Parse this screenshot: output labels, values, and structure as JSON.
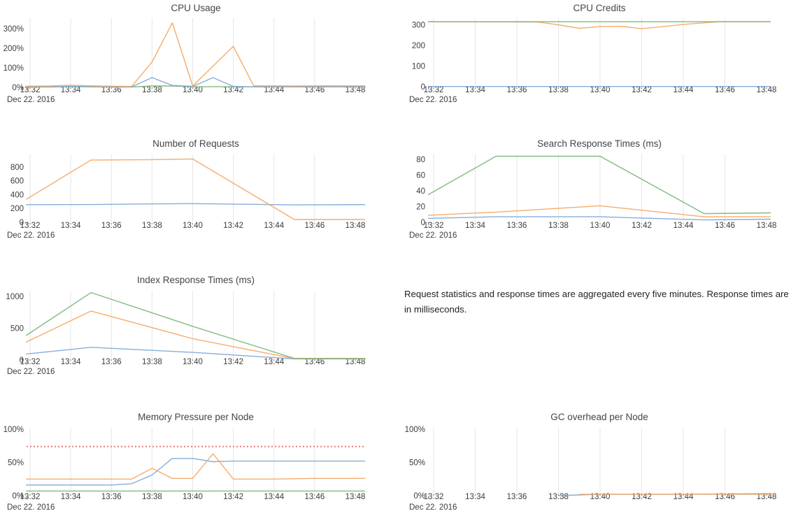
{
  "colors": {
    "blue": "#7ba7d7",
    "orange": "#f6a55e",
    "green": "#76b576",
    "red": "#eb7878",
    "grid": "#e6e6e6",
    "title_text": "#42454a",
    "tick_text": "#3c3c3c",
    "background": "#ffffff"
  },
  "x_axis": {
    "tick_labels": [
      "13:32",
      "13:34",
      "13:36",
      "13:38",
      "13:40",
      "13:42",
      "13:44",
      "13:46",
      "13:48"
    ],
    "date_label": "Dec 22. 2016",
    "x_range": [
      "13:32",
      "13:48"
    ]
  },
  "annotation": {
    "text": "Request statistics and response times are aggregated every five minutes. Response times are in milliseconds."
  },
  "chart_data": [
    {
      "id": "cpu-usage",
      "type": "line",
      "title": "CPU Usage",
      "ylabel": "",
      "ylim": [
        0,
        340
      ],
      "grid": "vertical",
      "legend": "none",
      "y_ticks": [
        {
          "value": 0,
          "label": "0%"
        },
        {
          "value": 100,
          "label": "100%"
        },
        {
          "value": 200,
          "label": "200%"
        },
        {
          "value": 300,
          "label": "300%"
        }
      ],
      "series": [
        {
          "name": "series-green",
          "color": "green",
          "points": [
            [
              31.8,
              2
            ],
            [
              33,
              2
            ],
            [
              34,
              4
            ],
            [
              35,
              3
            ],
            [
              36,
              2
            ],
            [
              37,
              2
            ],
            [
              38,
              7
            ],
            [
              39,
              7
            ],
            [
              40,
              3
            ],
            [
              41,
              4
            ],
            [
              42,
              3
            ],
            [
              43,
              3
            ],
            [
              44,
              4
            ],
            [
              45,
              3
            ],
            [
              46,
              3
            ],
            [
              47,
              4
            ],
            [
              48.49,
              4
            ]
          ]
        },
        {
          "name": "series-blue",
          "color": "blue",
          "points": [
            [
              31.8,
              3
            ],
            [
              33,
              3
            ],
            [
              34,
              5
            ],
            [
              35,
              4
            ],
            [
              36,
              3
            ],
            [
              37,
              3
            ],
            [
              38,
              50
            ],
            [
              39,
              10
            ],
            [
              40,
              5
            ],
            [
              41,
              50
            ],
            [
              42,
              5
            ],
            [
              43,
              3
            ],
            [
              44,
              3
            ],
            [
              45,
              3
            ],
            [
              46,
              3
            ],
            [
              47,
              3
            ],
            [
              48.49,
              3
            ]
          ]
        },
        {
          "name": "series-orange",
          "color": "orange",
          "points": [
            [
              31.8,
              6
            ],
            [
              33,
              7
            ],
            [
              34,
              11
            ],
            [
              35,
              8
            ],
            [
              36,
              6
            ],
            [
              37,
              5
            ],
            [
              38,
              130
            ],
            [
              39,
              330
            ],
            [
              40,
              7
            ],
            [
              42,
              210
            ],
            [
              43,
              8
            ],
            [
              44,
              8
            ],
            [
              45,
              7
            ],
            [
              46,
              8
            ],
            [
              47,
              8
            ],
            [
              48.49,
              8
            ]
          ]
        }
      ]
    },
    {
      "id": "cpu-credits",
      "type": "line",
      "title": "CPU Credits",
      "ylabel": "",
      "ylim": [
        0,
        330
      ],
      "grid": "vertical",
      "legend": "none",
      "y_ticks": [
        {
          "value": 0,
          "label": "0"
        },
        {
          "value": 100,
          "label": "100"
        },
        {
          "value": 200,
          "label": "200"
        },
        {
          "value": 300,
          "label": "300"
        }
      ],
      "series": [
        {
          "name": "series-blue",
          "color": "blue",
          "points": [
            [
              31.73,
              1
            ],
            [
              48.2,
              1
            ]
          ]
        },
        {
          "name": "series-orange",
          "color": "orange",
          "points": [
            [
              31.73,
              315
            ],
            [
              37,
              314
            ],
            [
              38,
              300
            ],
            [
              39,
              283
            ],
            [
              40,
              292
            ],
            [
              41,
              293
            ],
            [
              42,
              281
            ],
            [
              43,
              291
            ],
            [
              44,
              302
            ],
            [
              45.7,
              315
            ],
            [
              48.2,
              315
            ]
          ]
        },
        {
          "name": "series-green",
          "color": "green",
          "points": [
            [
              31.73,
              315
            ],
            [
              48.2,
              315
            ]
          ]
        }
      ]
    },
    {
      "id": "number-of-requests",
      "type": "line",
      "title": "Number of Requests",
      "ylabel": "",
      "ylim": [
        0,
        940
      ],
      "grid": "vertical",
      "legend": "none",
      "y_ticks": [
        {
          "value": 0,
          "label": "0"
        },
        {
          "value": 200,
          "label": "200"
        },
        {
          "value": 400,
          "label": "400"
        },
        {
          "value": 600,
          "label": "600"
        },
        {
          "value": 800,
          "label": "800"
        }
      ],
      "series": [
        {
          "name": "series-blue",
          "color": "blue",
          "points": [
            [
              31.8,
              255
            ],
            [
              35,
              257
            ],
            [
              38,
              266
            ],
            [
              40,
              270
            ],
            [
              43,
              260
            ],
            [
              45,
              252
            ],
            [
              48.49,
              256
            ]
          ]
        },
        {
          "name": "series-orange",
          "color": "orange",
          "points": [
            [
              31.8,
              330
            ],
            [
              35,
              900
            ],
            [
              38,
              905
            ],
            [
              40,
              915
            ],
            [
              45,
              40
            ],
            [
              48.49,
              40
            ]
          ]
        }
      ]
    },
    {
      "id": "search-response-times",
      "type": "line",
      "title": "Search Response Times (ms)",
      "ylabel": "",
      "ylim": [
        0,
        89
      ],
      "grid": "vertical",
      "legend": "none",
      "y_ticks": [
        {
          "value": 0,
          "label": "0"
        },
        {
          "value": 20,
          "label": "20"
        },
        {
          "value": 40,
          "label": "40"
        },
        {
          "value": 60,
          "label": "60"
        },
        {
          "value": 80,
          "label": "80"
        }
      ],
      "series": [
        {
          "name": "series-blue",
          "color": "blue",
          "points": [
            [
              31.73,
              5
            ],
            [
              35,
              7
            ],
            [
              40,
              7
            ],
            [
              45,
              3
            ],
            [
              48.2,
              4
            ]
          ]
        },
        {
          "name": "series-orange",
          "color": "orange",
          "points": [
            [
              31.73,
              9
            ],
            [
              35,
              13
            ],
            [
              40,
              21
            ],
            [
              45,
              7
            ],
            [
              48.2,
              7
            ]
          ]
        },
        {
          "name": "series-green",
          "color": "green",
          "points": [
            [
              31.73,
              35
            ],
            [
              35,
              84
            ],
            [
              40,
              84
            ],
            [
              45,
              11
            ],
            [
              48.2,
              12
            ]
          ]
        }
      ]
    },
    {
      "id": "index-response-times",
      "type": "line",
      "title": "Index Response Times (ms)",
      "ylabel": "",
      "ylim": [
        0,
        1100
      ],
      "grid": "vertical",
      "legend": "none",
      "y_ticks": [
        {
          "value": 0,
          "label": "0"
        },
        {
          "value": 500,
          "label": "500"
        },
        {
          "value": 1000,
          "label": "1000"
        }
      ],
      "series": [
        {
          "name": "series-blue",
          "color": "blue",
          "points": [
            [
              31.8,
              95
            ],
            [
              35,
              200
            ],
            [
              40,
              120
            ],
            [
              45,
              18
            ],
            [
              48.49,
              18
            ]
          ]
        },
        {
          "name": "series-orange",
          "color": "orange",
          "points": [
            [
              31.8,
              280
            ],
            [
              35,
              770
            ],
            [
              40,
              335
            ],
            [
              45,
              22
            ],
            [
              48.49,
              22
            ]
          ]
        },
        {
          "name": "series-green",
          "color": "green",
          "points": [
            [
              31.8,
              385
            ],
            [
              35,
              1060
            ],
            [
              40,
              530
            ],
            [
              45,
              25
            ],
            [
              48.49,
              25
            ]
          ]
        }
      ]
    },
    {
      "id": "memory-pressure",
      "type": "line",
      "title": "Memory Pressure per Node",
      "ylabel": "",
      "ylim": [
        0,
        100
      ],
      "grid": "vertical",
      "legend": "none",
      "y_ticks": [
        {
          "value": 0,
          "label": "0%"
        },
        {
          "value": 50,
          "label": "50%"
        },
        {
          "value": 100,
          "label": "100%"
        }
      ],
      "threshold": {
        "value": 74,
        "color": "red",
        "style": "dotted"
      },
      "series": [
        {
          "name": "series-blue",
          "color": "blue",
          "points": [
            [
              31.8,
              16
            ],
            [
              36,
              16
            ],
            [
              37,
              18
            ],
            [
              38,
              31
            ],
            [
              39,
              56
            ],
            [
              40,
              56
            ],
            [
              41,
              51
            ],
            [
              42,
              52
            ],
            [
              44,
              52
            ],
            [
              48.49,
              52
            ]
          ]
        },
        {
          "name": "series-orange",
          "color": "orange",
          "points": [
            [
              31.8,
              25
            ],
            [
              37,
              25
            ],
            [
              38,
              41
            ],
            [
              39,
              26
            ],
            [
              40,
              26
            ],
            [
              41,
              63
            ],
            [
              42,
              25
            ],
            [
              44,
              25
            ],
            [
              46,
              26
            ],
            [
              48.49,
              26
            ]
          ]
        },
        {
          "name": "series-green",
          "color": "green",
          "points": [
            [
              31.8,
              7
            ],
            [
              48.49,
              7
            ]
          ]
        }
      ]
    },
    {
      "id": "gc-overhead",
      "type": "line",
      "title": "GC overhead per Node",
      "ylabel": "",
      "ylim": [
        0,
        100
      ],
      "grid": "vertical",
      "legend": "none",
      "y_ticks": [
        {
          "value": 0,
          "label": "0%"
        },
        {
          "value": 50,
          "label": "50%"
        },
        {
          "value": 100,
          "label": "100%"
        }
      ],
      "series": [
        {
          "name": "series-blue",
          "color": "blue",
          "points": [
            [
              38,
              0
            ],
            [
              39,
              1
            ],
            [
              40,
              2
            ],
            [
              44,
              2
            ],
            [
              48.2,
              3
            ]
          ]
        },
        {
          "name": "series-orange",
          "color": "orange",
          "points": [
            [
              39,
              2
            ],
            [
              42,
              2
            ],
            [
              46,
              2
            ],
            [
              48.2,
              2
            ]
          ]
        }
      ]
    }
  ]
}
